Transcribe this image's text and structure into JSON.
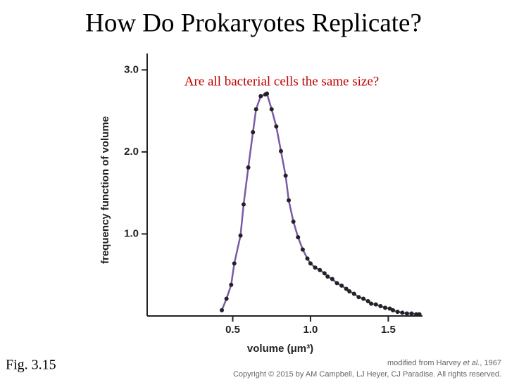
{
  "title": "How Do Prokaryotes Replicate?",
  "figure_label": "Fig. 3.15",
  "credit": {
    "prefix": "modified from Harvey ",
    "italic": "et al.",
    "suffix": ", 1967",
    "copyright": "Copyright © 2015 by AM Campbell, LJ Heyer, CJ Paradise. All rights reserved."
  },
  "chart_data": {
    "type": "scatter",
    "annotation": "Are all bacterial cells the same size?",
    "xlabel": "volume (μm³)",
    "ylabel": "frequency function of volume",
    "xlim": [
      -0.05,
      1.72
    ],
    "ylim": [
      0,
      3.2
    ],
    "xticks": [
      0.5,
      {
        "value": 1,
        "label": "1.0"
      },
      1.5
    ],
    "yticks": [
      {
        "value": 1,
        "label": "1.0"
      },
      {
        "value": 2,
        "label": "2.0"
      },
      {
        "value": 3,
        "label": "3.0"
      }
    ],
    "connect": true,
    "line_color": "#7a5aa6",
    "series": [
      {
        "color": "#222222",
        "x": [
          0.43,
          0.46,
          0.49,
          0.51,
          0.55,
          0.57,
          0.6,
          0.63,
          0.65,
          0.68,
          0.71,
          0.72,
          0.75,
          0.78,
          0.81,
          0.84,
          0.86,
          0.89,
          0.92,
          0.95,
          0.98,
          1.0,
          1.03,
          1.06,
          1.09,
          1.11,
          1.14,
          1.17,
          1.2,
          1.23,
          1.25,
          1.28,
          1.31,
          1.34,
          1.37,
          1.39,
          1.42,
          1.45,
          1.48,
          1.51,
          1.53,
          1.56,
          1.59,
          1.62,
          1.65,
          1.68,
          1.7
        ],
        "values": [
          0.07,
          0.21,
          0.38,
          0.64,
          0.98,
          1.36,
          1.81,
          2.24,
          2.52,
          2.68,
          2.7,
          2.71,
          2.52,
          2.31,
          2.01,
          1.71,
          1.41,
          1.15,
          0.96,
          0.81,
          0.7,
          0.64,
          0.59,
          0.56,
          0.52,
          0.48,
          0.45,
          0.4,
          0.37,
          0.33,
          0.3,
          0.27,
          0.23,
          0.21,
          0.18,
          0.15,
          0.14,
          0.12,
          0.1,
          0.09,
          0.07,
          0.05,
          0.04,
          0.03,
          0.03,
          0.02,
          0.02
        ]
      }
    ]
  }
}
